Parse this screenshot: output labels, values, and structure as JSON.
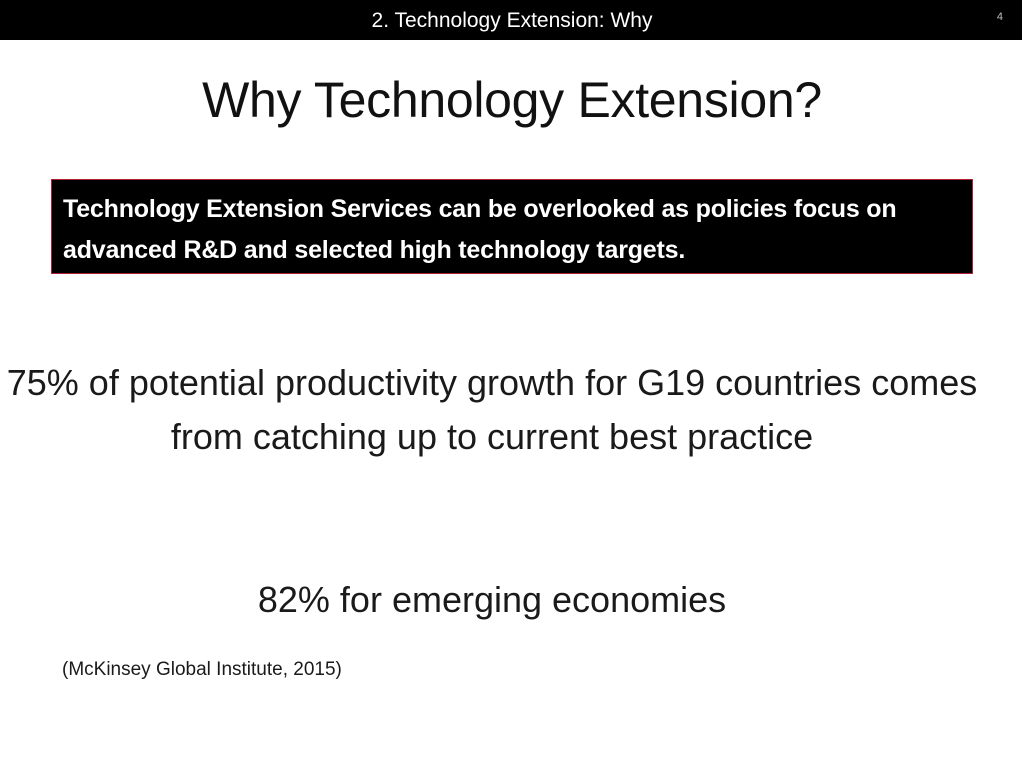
{
  "header": {
    "title": "2. Technology Extension: Why",
    "page_number": "4"
  },
  "slide": {
    "title": "Why Technology Extension?",
    "callout": "Technology Extension Services can be overlooked as policies focus on advanced R&D and selected high technology targets.",
    "stat_main": "75% of potential productivity growth for G19 countries comes from catching up to current best practice",
    "stat_secondary": "82% for emerging economies",
    "citation": "(McKinsey Global Institute, 2015)"
  },
  "colors": {
    "header_bg": "#000000",
    "header_text": "#ffffff",
    "callout_bg": "#000000",
    "callout_border": "#b02030",
    "body_text": "#1a1a1a"
  }
}
